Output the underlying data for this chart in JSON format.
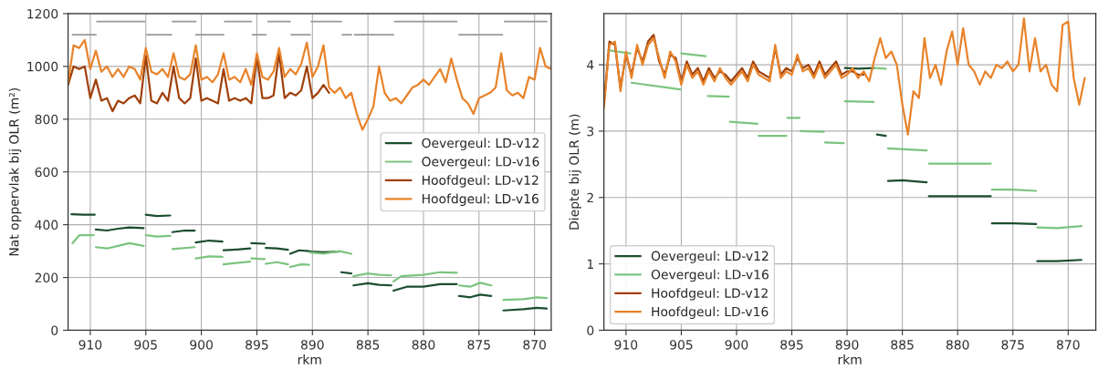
{
  "chart_data": [
    {
      "type": "line",
      "xlabel": "rkm",
      "ylabel": "Nat oppervlak bij OLR (m²)",
      "xlim": [
        912,
        868.5
      ],
      "xticks": [
        910,
        905,
        900,
        895,
        890,
        885,
        880,
        875,
        870
      ],
      "ylim": [
        0,
        1200
      ],
      "yticks": [
        0,
        200,
        400,
        600,
        800,
        1000,
        1200
      ],
      "grid": true,
      "legend": "center right",
      "series": [
        {
          "name": "Oevergeul: LD-v12",
          "color": "#1b4d2e",
          "x": [
            911.7,
            910.6,
            909.6,
            909.55,
            909.5,
            908.5,
            907.5,
            906.5,
            905.2,
            905.1,
            905,
            904,
            902.8,
            902.7,
            902.6,
            901.5,
            900.6,
            900.55,
            900.5,
            899.3,
            898.1,
            898.05,
            898,
            896.8,
            895.6,
            895.55,
            895.5,
            894.3,
            894.25,
            894.2,
            893.2,
            892.2,
            892.1,
            892,
            891.2,
            890.3,
            890.25,
            890.2,
            889,
            887.6,
            887.5,
            887.4,
            886.5,
            886.4,
            886.3,
            885,
            884,
            882.9,
            882.8,
            882.7,
            881.5,
            880,
            878.5,
            877,
            876.9,
            876.8,
            875.8,
            874.9,
            873.9,
            873.3,
            872.8,
            871,
            869.8,
            868.9
          ],
          "values": [
            440,
            438,
            438,
            null,
            382,
            378,
            385,
            390,
            387,
            null,
            438,
            433,
            435,
            null,
            372,
            378,
            378,
            null,
            333,
            340,
            336,
            null,
            303,
            306,
            310,
            null,
            330,
            328,
            null,
            312,
            310,
            305,
            null,
            290,
            303,
            300,
            null,
            298,
            296,
            298,
            null,
            220,
            215,
            null,
            170,
            178,
            172,
            170,
            null,
            150,
            165,
            165,
            175,
            175,
            null,
            130,
            125,
            135,
            130,
            null,
            75,
            80,
            85,
            82
          ]
        },
        {
          "name": "Oevergeul: LD-v16",
          "color": "#7cc47f",
          "x": [
            911.6,
            911,
            909.7,
            909.6,
            909.5,
            908.5,
            907.5,
            906.5,
            905.2,
            905.1,
            905,
            904,
            902.8,
            902.7,
            902.6,
            900.6,
            900.55,
            900.5,
            899.3,
            898.1,
            898.05,
            898,
            896.8,
            895.6,
            895.55,
            895.5,
            894.3,
            894.25,
            894.2,
            893.2,
            892.2,
            892.1,
            892,
            891,
            890.3,
            890.25,
            890.2,
            889,
            887.6,
            886.5,
            886.4,
            886.3,
            885,
            884,
            882.9,
            882.8,
            882.7,
            882,
            880,
            878.5,
            877,
            876.9,
            876.8,
            875.8,
            874.9,
            873.9,
            873.3,
            872.8,
            871,
            869.8,
            868.9
          ],
          "values": [
            330,
            360,
            360,
            null,
            315,
            310,
            320,
            330,
            320,
            null,
            360,
            355,
            358,
            null,
            308,
            315,
            null,
            272,
            280,
            278,
            null,
            250,
            255,
            260,
            null,
            272,
            270,
            null,
            252,
            258,
            250,
            null,
            240,
            250,
            248,
            null,
            295,
            290,
            300,
            290,
            null,
            205,
            215,
            210,
            208,
            null,
            185,
            205,
            210,
            220,
            218,
            null,
            170,
            165,
            180,
            170,
            null,
            115,
            118,
            125,
            122
          ]
        },
        {
          "name": "Hoofdgeul: LD-v12",
          "color": "#a0400a",
          "x": [
            912,
            911.5,
            911,
            910.5,
            910,
            909.5,
            909,
            908.5,
            908,
            907.5,
            907,
            906.5,
            906,
            905.5,
            905,
            904.5,
            904,
            903.5,
            903,
            902.5,
            902,
            901.5,
            901,
            900.5,
            900,
            899.5,
            899,
            898.5,
            898,
            897.5,
            897,
            896.5,
            896,
            895.5,
            895,
            894.5,
            894,
            893.5,
            893,
            892.5,
            892,
            891.5,
            891,
            890.5,
            890,
            889.5,
            889,
            888.5
          ],
          "values": [
            930,
            1000,
            990,
            1000,
            880,
            950,
            870,
            880,
            830,
            870,
            860,
            880,
            890,
            860,
            1040,
            870,
            860,
            900,
            870,
            1000,
            880,
            860,
            880,
            1030,
            870,
            880,
            870,
            860,
            990,
            870,
            880,
            870,
            880,
            860,
            1040,
            880,
            880,
            890,
            1050,
            880,
            900,
            890,
            910,
            1000,
            880,
            900,
            930,
            900
          ]
        },
        {
          "name": "Hoofdgeul: LD-v16",
          "color": "#e8832a",
          "x": [
            912,
            911.5,
            911,
            910.5,
            910,
            909.5,
            909,
            908.5,
            908,
            907.5,
            907,
            906.5,
            906,
            905.5,
            905,
            904.5,
            904,
            903.5,
            903,
            902.5,
            902,
            901.5,
            901,
            900.5,
            900,
            899.5,
            899,
            898.5,
            898,
            897.5,
            897,
            896.5,
            896,
            895.5,
            895,
            894.5,
            894,
            893.5,
            893,
            892.5,
            892,
            891.5,
            891,
            890.5,
            890,
            889.5,
            889,
            888.5,
            888,
            887.5,
            887,
            886.5,
            886,
            885.5,
            885,
            884.5,
            884,
            883.5,
            883,
            882.5,
            882,
            881.5,
            881,
            880.5,
            880,
            879.5,
            879,
            878.5,
            878,
            877.5,
            877,
            876.5,
            876,
            875.5,
            875,
            874.5,
            874,
            873.5,
            873,
            872.5,
            872,
            871.5,
            871,
            870.5,
            870,
            869.5,
            869,
            868.5
          ],
          "values": [
            940,
            1080,
            1070,
            1100,
            990,
            1060,
            980,
            1000,
            960,
            990,
            960,
            1000,
            990,
            950,
            1070,
            980,
            970,
            990,
            960,
            1050,
            960,
            950,
            970,
            1080,
            950,
            960,
            940,
            970,
            1050,
            950,
            960,
            940,
            990,
            930,
            1050,
            960,
            950,
            980,
            1070,
            960,
            990,
            970,
            1010,
            1090,
            960,
            1000,
            1080,
            920,
            900,
            920,
            880,
            900,
            820,
            760,
            800,
            850,
            1000,
            900,
            870,
            880,
            860,
            890,
            920,
            930,
            950,
            930,
            960,
            990,
            940,
            1030,
            950,
            880,
            860,
            820,
            880,
            890,
            900,
            920,
            1050,
            910,
            890,
            900,
            880,
            960,
            950,
            1070,
            1000,
            990
          ]
        },
        {
          "color": "#999999",
          "x": [
            909.4,
            905.1,
            903.85,
            902.6,
            900.5,
            899.2,
            897.9,
            895.5,
            894.75,
            894.0,
            892.0,
            891.05,
            890.1,
            887.4,
            885.0,
            882.6,
            877.0,
            874.85,
            872.7,
            868.9
          ],
          "values": [
            1170,
            1170,
            null,
            1170,
            1170,
            null,
            1170,
            1170,
            null,
            1170,
            1170,
            null,
            1170,
            1170,
            null,
            1170,
            1170,
            null,
            1170,
            1170
          ]
        },
        {
          "color": "#999999",
          "x": [
            911.6,
            909.5,
            907.2,
            904.9,
            902.7,
            901.6,
            900.5,
            898.0,
            896.7,
            895.4,
            894.2,
            893.05,
            891.9,
            890.2,
            888.75,
            887.3,
            886.5,
            886.35,
            886.2,
            882.7,
            879.75,
            876.8,
            872.9
          ],
          "values": [
            1120,
            1120,
            null,
            1120,
            1120,
            null,
            1120,
            1120,
            null,
            1120,
            1120,
            null,
            1120,
            1120,
            null,
            1120,
            1120,
            null,
            1120,
            1120,
            null,
            1120,
            1120
          ]
        }
      ]
    },
    {
      "type": "line",
      "xlabel": "rkm",
      "ylabel": "Diepte bij OLR (m)",
      "xlim": [
        912,
        867.5
      ],
      "xticks": [
        910,
        905,
        900,
        895,
        890,
        885,
        880,
        875,
        870
      ],
      "ylim": [
        0,
        4.77
      ],
      "yticks": [
        0,
        1,
        2,
        3,
        4
      ],
      "grid": true,
      "legend": "lower left",
      "series": [
        {
          "name": "Oevergeul: LD-v12",
          "color": "#1b4d2e",
          "x": [
            890.2,
            888.9,
            887.6,
            887.45,
            887.3,
            886.5,
            886.4,
            886.3,
            885,
            882.8,
            882.7,
            882.6,
            880,
            877,
            876.95,
            876.9,
            875,
            872.9,
            872.85,
            872.8,
            871,
            868.8
          ],
          "values": [
            3.95,
            3.94,
            3.95,
            null,
            2.95,
            2.93,
            null,
            2.25,
            2.26,
            2.23,
            null,
            2.02,
            2.02,
            2.02,
            null,
            1.61,
            1.61,
            1.6,
            null,
            1.04,
            1.04,
            1.06
          ]
        },
        {
          "name": "Oevergeul: LD-v16",
          "color": "#7cc47f",
          "x": [
            911.6,
            909.6,
            909.55,
            909.5,
            905.1,
            905.05,
            905,
            902.8,
            902.7,
            902.6,
            900.7,
            900.65,
            900.6,
            898.1,
            898.05,
            898,
            895.5,
            895.45,
            895.4,
            894.3,
            894.25,
            894.2,
            892.1,
            892.05,
            892,
            890.3,
            890.25,
            890.2,
            887.6,
            887.55,
            887.5,
            886.5,
            886.4,
            886.3,
            882.8,
            882.7,
            882.6,
            877,
            876.95,
            876.9,
            875,
            872.9,
            872.85,
            872.8,
            871,
            868.8
          ],
          "values": [
            4.22,
            4.17,
            null,
            3.73,
            3.63,
            null,
            4.17,
            4.13,
            null,
            3.53,
            3.52,
            null,
            3.14,
            3.11,
            null,
            2.93,
            2.93,
            null,
            3.2,
            3.2,
            null,
            3.0,
            2.99,
            null,
            2.83,
            2.82,
            null,
            3.45,
            3.44,
            null,
            3.95,
            3.94,
            null,
            2.74,
            2.71,
            null,
            2.51,
            2.51,
            null,
            2.12,
            2.12,
            2.1,
            null,
            1.55,
            1.54,
            1.57
          ]
        },
        {
          "name": "Hoofdgeul: LD-v12",
          "color": "#a0400a",
          "x": [
            912,
            911.5,
            911,
            910.5,
            910,
            909.5,
            909,
            908.5,
            908,
            907.5,
            907,
            906.5,
            906,
            905.5,
            905,
            904.5,
            904,
            903.5,
            903,
            902.5,
            902,
            901.5,
            901,
            900.5,
            900,
            899.5,
            899,
            898.5,
            898,
            897.5,
            897,
            896.5,
            896,
            895.5,
            895,
            894.5,
            894,
            893.5,
            893,
            892.5,
            892,
            891.5,
            891,
            890.5,
            890,
            889.5,
            889,
            888.5
          ],
          "values": [
            3.4,
            4.35,
            4.3,
            3.65,
            4.15,
            3.85,
            4.25,
            4.05,
            4.35,
            4.45,
            4.05,
            3.85,
            4.15,
            4.1,
            3.75,
            4.05,
            3.85,
            3.95,
            3.75,
            3.95,
            3.8,
            3.9,
            3.85,
            3.75,
            3.85,
            3.95,
            3.8,
            4.05,
            3.9,
            3.85,
            3.8,
            4.25,
            3.85,
            3.95,
            3.9,
            4.1,
            3.95,
            4.0,
            3.85,
            4.05,
            3.85,
            3.95,
            4.05,
            3.85,
            3.9,
            3.9,
            3.85,
            3.85
          ]
        },
        {
          "name": "Hoofdgeul: LD-v16",
          "color": "#e8832a",
          "x": [
            912,
            911.5,
            911,
            910.5,
            910,
            909.5,
            909,
            908.5,
            908,
            907.5,
            907,
            906.5,
            906,
            905.5,
            905,
            904.5,
            904,
            903.5,
            903,
            902.5,
            902,
            901.5,
            901,
            900.5,
            900,
            899.5,
            899,
            898.5,
            898,
            897.5,
            897,
            896.5,
            896,
            895.5,
            895,
            894.5,
            894,
            893.5,
            893,
            892.5,
            892,
            891.5,
            891,
            890.5,
            890,
            889.5,
            889,
            888.5,
            888,
            887.5,
            887,
            886.5,
            886,
            885.5,
            885,
            884.5,
            884,
            883.5,
            883,
            882.5,
            882,
            881.5,
            881,
            880.5,
            880,
            879.5,
            879,
            878.5,
            878,
            877.5,
            877,
            876.5,
            876,
            875.5,
            875,
            874.5,
            874,
            873.5,
            873,
            872.5,
            872,
            871.5,
            871,
            870.5,
            870,
            869.5,
            869,
            868.5
          ],
          "values": [
            3.35,
            4.3,
            4.35,
            3.6,
            4.2,
            3.8,
            4.3,
            4.0,
            4.3,
            4.4,
            4.1,
            3.8,
            4.2,
            4.05,
            3.7,
            4.0,
            3.8,
            3.9,
            3.7,
            3.9,
            3.75,
            3.95,
            3.8,
            3.7,
            3.8,
            3.9,
            3.75,
            4.0,
            3.85,
            3.8,
            3.75,
            4.3,
            3.8,
            3.9,
            3.85,
            4.15,
            3.9,
            3.95,
            3.8,
            4.0,
            3.8,
            3.9,
            4.0,
            3.8,
            3.85,
            3.95,
            3.8,
            3.9,
            3.75,
            4.1,
            4.4,
            4.1,
            4.2,
            4.0,
            3.4,
            2.95,
            3.6,
            3.5,
            4.4,
            3.8,
            4.0,
            3.7,
            4.2,
            4.5,
            4.0,
            4.55,
            4.0,
            3.9,
            3.7,
            3.9,
            3.8,
            4.0,
            3.95,
            4.05,
            3.9,
            4.0,
            4.7,
            3.9,
            4.4,
            3.9,
            4.0,
            3.7,
            3.6,
            4.6,
            4.65,
            3.8,
            3.4,
            3.8
          ]
        }
      ]
    }
  ]
}
